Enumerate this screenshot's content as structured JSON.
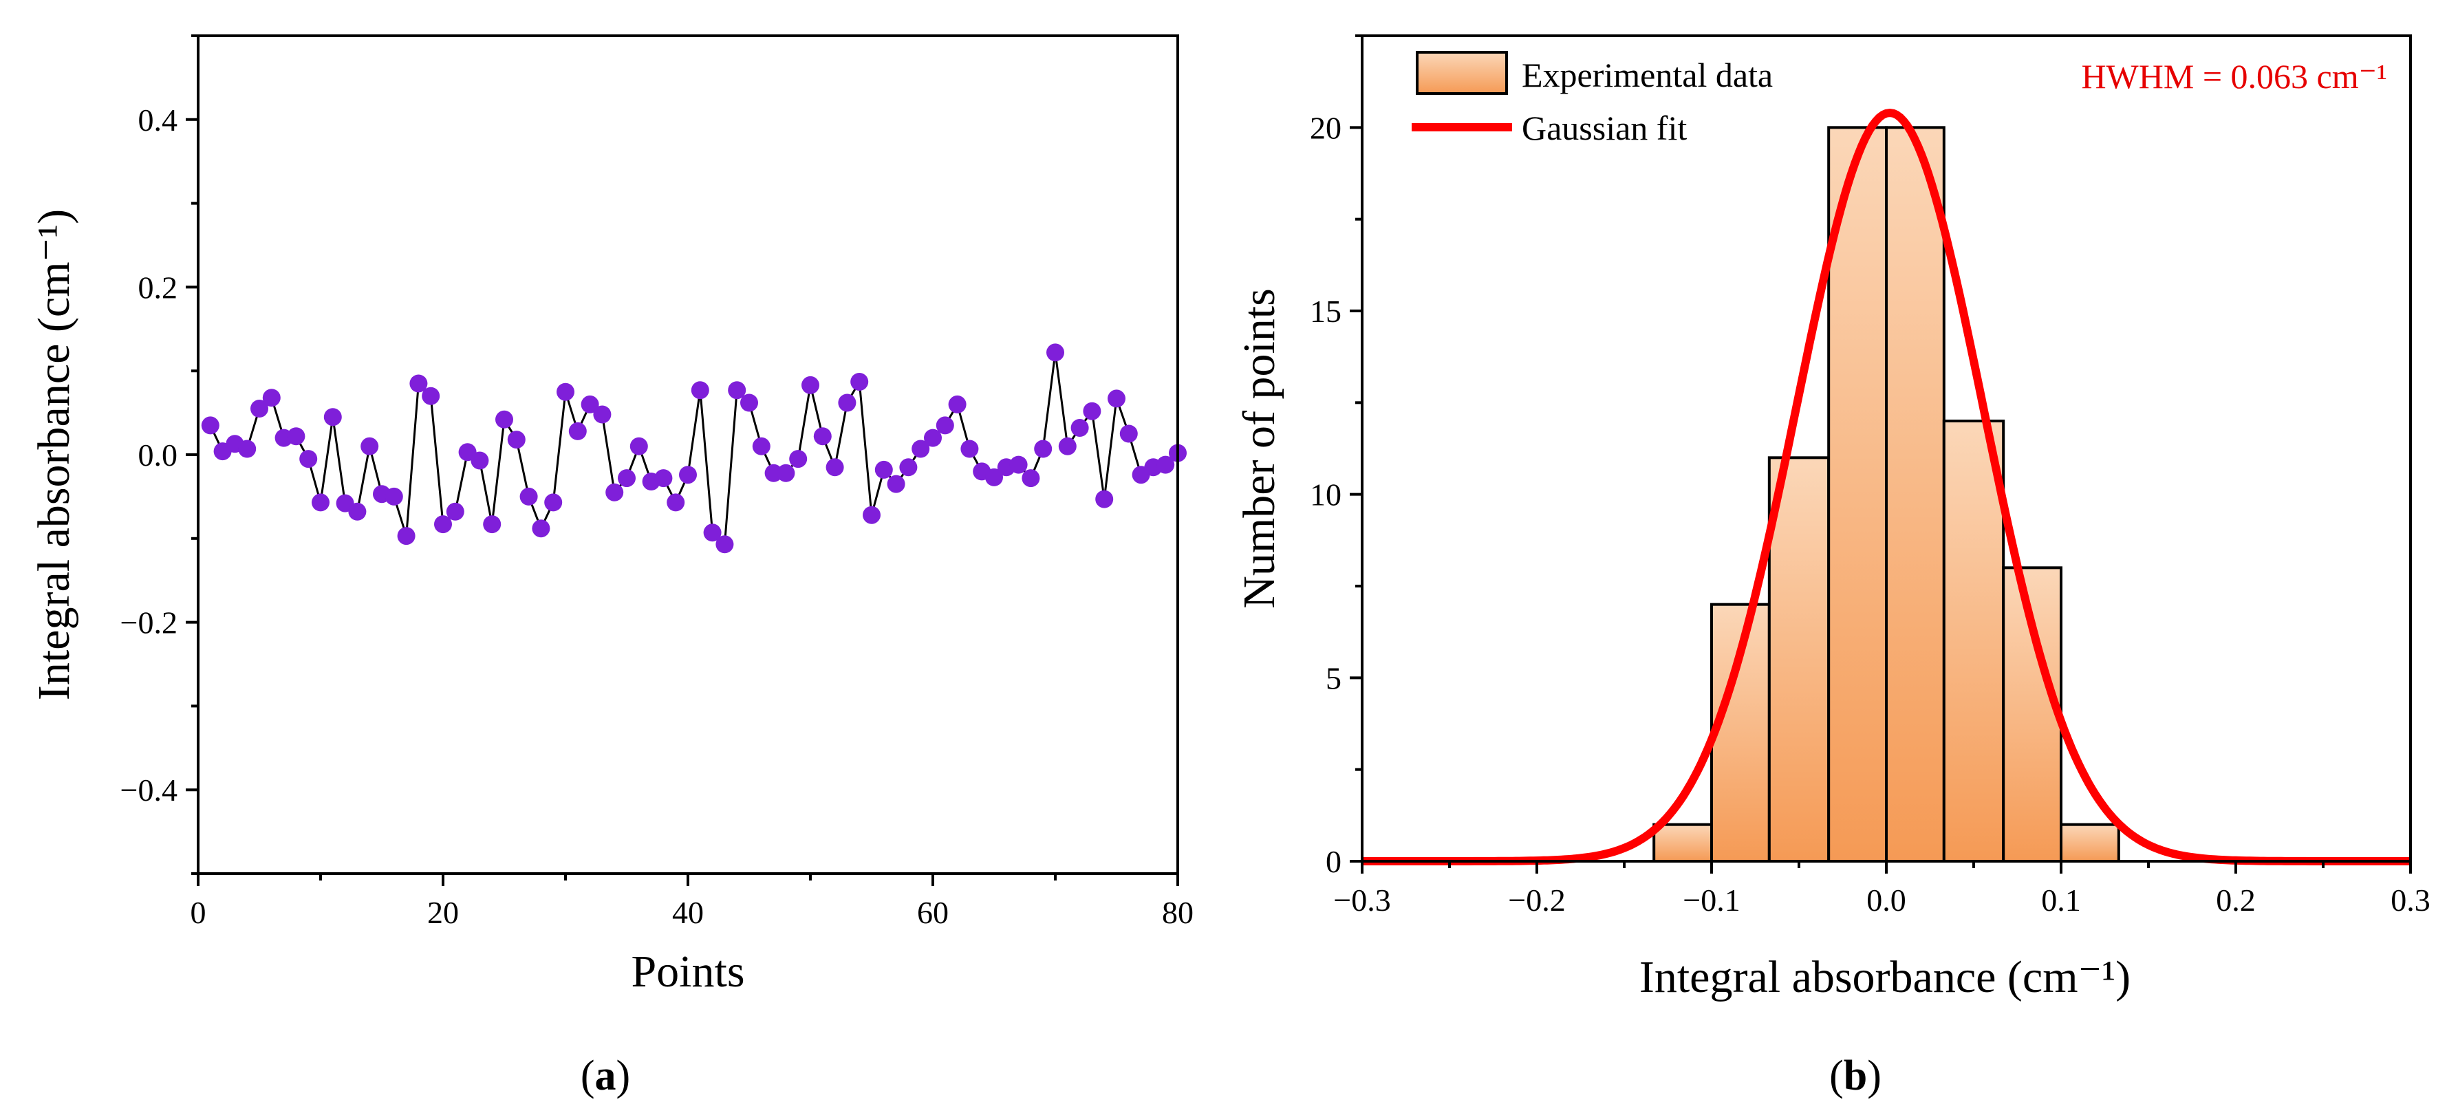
{
  "chart_data": [
    {
      "type": "scatter",
      "panel_label": "a",
      "xlabel": "Points",
      "ylabel": "Integral absorbance (cm⁻¹)",
      "xlim": [
        0,
        80
      ],
      "ylim": [
        -0.5,
        0.5
      ],
      "x_ticks": [
        0,
        20,
        40,
        60,
        80
      ],
      "y_ticks": [
        -0.4,
        -0.2,
        0.0,
        0.2,
        0.4
      ],
      "x_tick_labels": [
        "0",
        "20",
        "40",
        "60",
        "80"
      ],
      "y_tick_labels": [
        "−0.4",
        "−0.2",
        "0.0",
        "0.2",
        "0.4"
      ],
      "grid": false,
      "line_color": "#000000",
      "marker_color": "#7f1fd9",
      "x": [
        1,
        2,
        3,
        4,
        5,
        6,
        7,
        8,
        9,
        10,
        11,
        12,
        13,
        14,
        15,
        16,
        17,
        18,
        19,
        20,
        21,
        22,
        23,
        24,
        25,
        26,
        27,
        28,
        29,
        30,
        31,
        32,
        33,
        34,
        35,
        36,
        37,
        38,
        39,
        40,
        41,
        42,
        43,
        44,
        45,
        46,
        47,
        48,
        49,
        50,
        51,
        52,
        53,
        54,
        55,
        56,
        57,
        58,
        59,
        60,
        61,
        62,
        63,
        64,
        65,
        66,
        67,
        68,
        69,
        70,
        71,
        72,
        73,
        74,
        75,
        76,
        77,
        78,
        79,
        80
      ],
      "y": [
        0.035,
        0.004,
        0.013,
        0.007,
        0.055,
        0.068,
        0.02,
        0.022,
        -0.005,
        -0.057,
        0.045,
        -0.058,
        -0.068,
        0.01,
        -0.047,
        -0.05,
        -0.097,
        0.085,
        0.07,
        -0.083,
        -0.068,
        0.003,
        -0.007,
        -0.083,
        0.042,
        0.018,
        -0.05,
        -0.088,
        -0.057,
        0.075,
        0.028,
        0.06,
        0.048,
        -0.045,
        -0.028,
        0.01,
        -0.032,
        -0.028,
        -0.057,
        -0.024,
        0.077,
        -0.093,
        -0.107,
        0.077,
        0.062,
        0.01,
        -0.022,
        -0.022,
        -0.005,
        0.083,
        0.022,
        -0.015,
        0.062,
        0.087,
        -0.072,
        -0.018,
        -0.035,
        -0.015,
        0.007,
        0.02,
        0.035,
        0.06,
        0.007,
        -0.02,
        -0.027,
        -0.015,
        -0.012,
        -0.028,
        0.007,
        0.122,
        0.01,
        0.032,
        0.052,
        -0.053,
        0.067,
        0.025,
        -0.024,
        -0.015,
        -0.012,
        0.002
      ]
    },
    {
      "type": "bar",
      "panel_label": "b",
      "xlabel": "Integral absorbance (cm⁻¹)",
      "ylabel": "Number of points",
      "xlim": [
        -0.3,
        0.3
      ],
      "ylim": [
        0,
        22.5
      ],
      "x_ticks": [
        -0.3,
        -0.2,
        -0.1,
        0.0,
        0.1,
        0.2,
        0.3
      ],
      "y_ticks": [
        0,
        5,
        10,
        15,
        20
      ],
      "x_tick_labels": [
        "−0.3",
        "−0.2",
        "−0.1",
        "0.0",
        "0.1",
        "0.2",
        "0.3"
      ],
      "y_tick_labels": [
        "0",
        "5",
        "10",
        "15",
        "20"
      ],
      "grid": false,
      "legend_position": "top-left",
      "bin_edges": [
        -0.133,
        -0.1,
        -0.067,
        -0.033,
        0.0,
        0.033,
        0.067,
        0.1,
        0.133
      ],
      "counts": [
        1,
        7,
        11,
        20,
        20,
        12,
        8,
        1
      ],
      "series": [
        {
          "name": "Experimental data",
          "kind": "histogram",
          "color": "#f7a468"
        },
        {
          "name": "Gaussian fit",
          "kind": "line",
          "color": "#ff0000",
          "amplitude": 20.4,
          "center": 0.002,
          "hwhm": 0.063
        }
      ],
      "annotation": "HWHM = 0.063 cm⁻¹"
    }
  ]
}
